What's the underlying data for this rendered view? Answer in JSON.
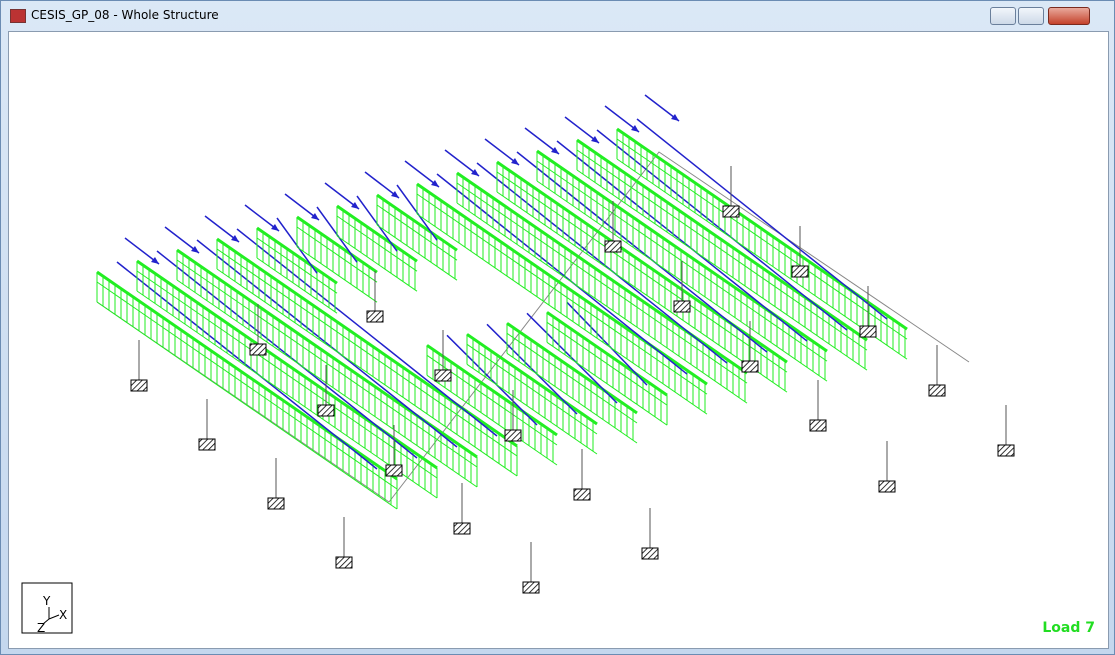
{
  "window": {
    "title": "CESIS_GP_08 - Whole Structure"
  },
  "viewport": {
    "load_label": "Load 7",
    "axis_labels": {
      "y": "Y",
      "x": "X",
      "z": "Z"
    }
  }
}
